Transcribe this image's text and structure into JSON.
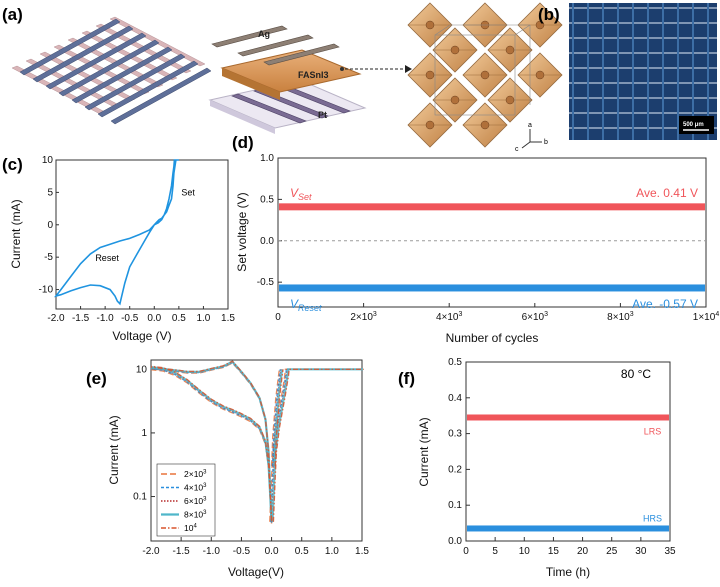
{
  "panels": {
    "a": {
      "label": "(a)",
      "layer_top": "Ag",
      "layer_mid": "FASnI3",
      "layer_bottom": "Pt",
      "axes": {
        "a": "a",
        "b": "b",
        "c": "c"
      }
    },
    "b": {
      "label": "(b)",
      "scale": "500 μm"
    },
    "c": {
      "label": "(c)"
    },
    "d": {
      "label": "(d)"
    },
    "e": {
      "label": "(e)"
    },
    "f": {
      "label": "(f)"
    }
  },
  "colors": {
    "red": "#f0555a",
    "blue": "#2a8fde",
    "iv": "#1f94e0",
    "gray": "#9b9b9b",
    "orange": "#e8743b",
    "micro_bg": "#1c3e6e",
    "micro_stripe": "#3d6ea5"
  },
  "chart_data": [
    {
      "id": "c",
      "type": "line",
      "xlabel": "Voltage (V)",
      "ylabel": "Current (mA)",
      "xlim": [
        -2.0,
        1.5
      ],
      "ylim": [
        -13,
        10
      ],
      "xticks": [
        "-2.0",
        "-1.5",
        "-1.0",
        "-0.5",
        "0.0",
        "0.5",
        "1.0",
        "1.5"
      ],
      "yticks": [
        "10",
        "5",
        "0",
        "-5",
        "-10"
      ],
      "annotations": {
        "set": "Set",
        "reset": "Reset"
      },
      "series": [
        {
          "name": "I-V loop",
          "x": [
            0,
            0.08,
            0.15,
            0.2,
            0.25,
            0.3,
            0.35,
            0.38,
            0.4,
            0.41,
            0.42,
            0.5,
            0.44,
            0.42,
            0.4,
            0.38,
            0.35,
            0.3,
            0.25,
            0.2,
            0.15,
            0.1,
            0.05,
            0,
            -0.1,
            -0.3,
            -0.5,
            -0.7,
            -0.9,
            -1.1,
            -1.3,
            -1.5,
            -1.7,
            -1.9,
            -2.0,
            -1.9,
            -1.7,
            -1.5,
            -1.3,
            -1.1,
            -0.9,
            -0.8,
            -0.75,
            -0.7,
            -0.6,
            -0.5,
            -0.35,
            -0.2,
            -0.1,
            0
          ],
          "y": [
            0,
            0.3,
            0.8,
            1.5,
            2.5,
            4,
            6,
            8,
            9,
            10,
            10,
            10,
            10,
            9,
            8,
            6,
            4,
            3,
            2,
            1.5,
            1,
            0.8,
            0.4,
            0,
            -0.8,
            -1.5,
            -2.1,
            -2.5,
            -3,
            -3.5,
            -4.5,
            -6,
            -8,
            -10,
            -11,
            -10.8,
            -10.2,
            -9.7,
            -9.3,
            -9.4,
            -10,
            -11,
            -11.8,
            -12.2,
            -9,
            -6.5,
            -4.5,
            -2.5,
            -1.2,
            0
          ]
        }
      ]
    },
    {
      "id": "d",
      "type": "scatter",
      "xlabel": "Number of cycles",
      "ylabel": "Set voltage (V)",
      "xlim": [
        0,
        10000
      ],
      "ylim": [
        -0.8,
        1.0
      ],
      "xticks": [
        "0",
        "2×10",
        "4×10",
        "6×10",
        "8×10",
        "1×10"
      ],
      "xtick_exp": [
        "",
        "3",
        "3",
        "3",
        "3",
        "4"
      ],
      "yticks": [
        "1.0",
        "0.5",
        "0.0",
        "-0.5"
      ],
      "series": [
        {
          "name": "V",
          "sub": "Set",
          "value": 0.41,
          "average_label": "Ave. 0.41 V"
        },
        {
          "name": "V",
          "sub": "Reset",
          "value": -0.57,
          "average_label": "Ave. -0.57 V"
        }
      ],
      "reference_line": 0.0
    },
    {
      "id": "e",
      "type": "line",
      "xlabel": "Voltage(V)",
      "ylabel": "Current (mA)",
      "xlim": [
        -2.0,
        1.5
      ],
      "yscale": "log",
      "ylim": [
        0.02,
        14
      ],
      "xticks": [
        "-2.0",
        "-1.5",
        "-1.0",
        "-0.5",
        "0.0",
        "0.5",
        "1.0",
        "1.5"
      ],
      "yticks": [
        "10",
        "1",
        "0.1"
      ],
      "legend": [
        {
          "label": "2×10",
          "exp": "3"
        },
        {
          "label": "4×10",
          "exp": "3"
        },
        {
          "label": "6×10",
          "exp": "3"
        },
        {
          "label": "8×10",
          "exp": "3"
        },
        {
          "label": "10",
          "exp": "4"
        }
      ],
      "loop_x": [
        0,
        0.03,
        0.05,
        0.1,
        0.15,
        0.2,
        0.23,
        0.25,
        0.26,
        0.3,
        0.5,
        1.0,
        1.5
      ],
      "loop_y": [
        0.04,
        0.2,
        0.5,
        1.2,
        2.2,
        4,
        6,
        8,
        10,
        10,
        10,
        10,
        10
      ],
      "set_x": [
        0.03,
        0.05,
        0.08,
        0.1,
        0.13,
        0.15,
        0.16
      ],
      "set_y": [
        0.3,
        0.9,
        2,
        3.5,
        6,
        8.5,
        10
      ],
      "neg_x": [
        0,
        -0.05,
        -0.1,
        -0.2,
        -0.35,
        -0.5,
        -0.65,
        -0.8,
        -1.0,
        -1.2,
        -1.4,
        -1.6,
        -1.8,
        -2.0
      ],
      "neg_upper_y": [
        0.04,
        0.5,
        1.6,
        3.5,
        6,
        9,
        13,
        11,
        10,
        9,
        9,
        9.5,
        10,
        10.5
      ],
      "neg_lower_y": [
        0.04,
        0.3,
        0.7,
        1.2,
        1.6,
        1.9,
        2.2,
        2.5,
        3.2,
        4.5,
        6.5,
        8.5,
        10,
        10.5
      ]
    },
    {
      "id": "f",
      "type": "scatter",
      "xlabel": "Time (h)",
      "ylabel": "Current (mA)",
      "xlim": [
        0,
        35
      ],
      "ylim": [
        0,
        0.5
      ],
      "xticks": [
        "0",
        "5",
        "10",
        "15",
        "20",
        "25",
        "30",
        "35"
      ],
      "yticks": [
        "0.5",
        "0.4",
        "0.3",
        "0.2",
        "0.1",
        "0.0"
      ],
      "temperature": "80 °C",
      "series": [
        {
          "name": "LRS",
          "value": 0.345
        },
        {
          "name": "HRS",
          "value": 0.035
        }
      ]
    }
  ]
}
